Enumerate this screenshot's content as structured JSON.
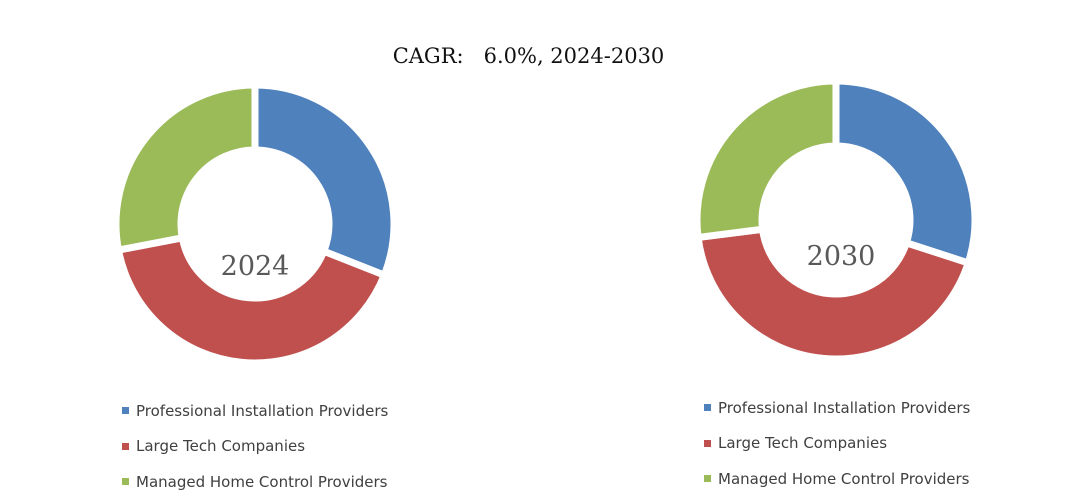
{
  "title": "CAGR:   6.0%, 2024-2030",
  "colors": {
    "professional": "#4f81bd",
    "large_tech": "#c0504d",
    "managed": "#9bbb59"
  },
  "chart_data": [
    {
      "type": "pie",
      "subtype": "donut",
      "title": "2024",
      "center_label": "2024",
      "categories": [
        "Professional Installation Providers",
        "Large Tech Companies",
        "Managed Home Control Providers"
      ],
      "values": [
        31,
        41,
        28
      ],
      "legend": [
        "Professional Installation Providers",
        "Large Tech Companies",
        "Managed Home Control Providers"
      ],
      "legend_position": "bottom"
    },
    {
      "type": "pie",
      "subtype": "donut",
      "title": "2030",
      "center_label": "2030",
      "categories": [
        "Professional Installation Providers",
        "Large Tech Companies",
        "Managed Home Control Providers"
      ],
      "values": [
        30,
        43,
        27
      ],
      "legend": [
        "Professional Installation Providers",
        "Large Tech Companies",
        "Managed Home Control Providers"
      ],
      "legend_position": "bottom"
    }
  ]
}
